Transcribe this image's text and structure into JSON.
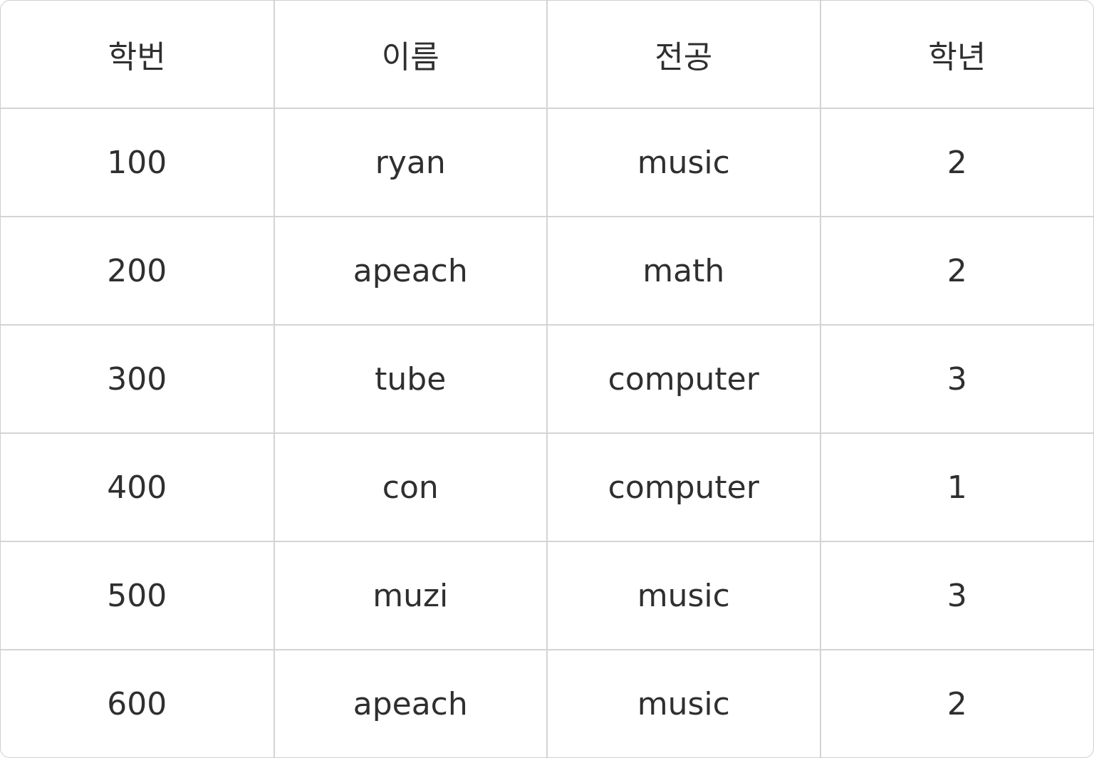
{
  "table": {
    "headers": [
      "학번",
      "이름",
      "전공",
      "학년"
    ],
    "rows": [
      [
        "100",
        "ryan",
        "music",
        "2"
      ],
      [
        "200",
        "apeach",
        "math",
        "2"
      ],
      [
        "300",
        "tube",
        "computer",
        "3"
      ],
      [
        "400",
        "con",
        "computer",
        "1"
      ],
      [
        "500",
        "muzi",
        "music",
        "3"
      ],
      [
        "600",
        "apeach",
        "music",
        "2"
      ]
    ]
  }
}
